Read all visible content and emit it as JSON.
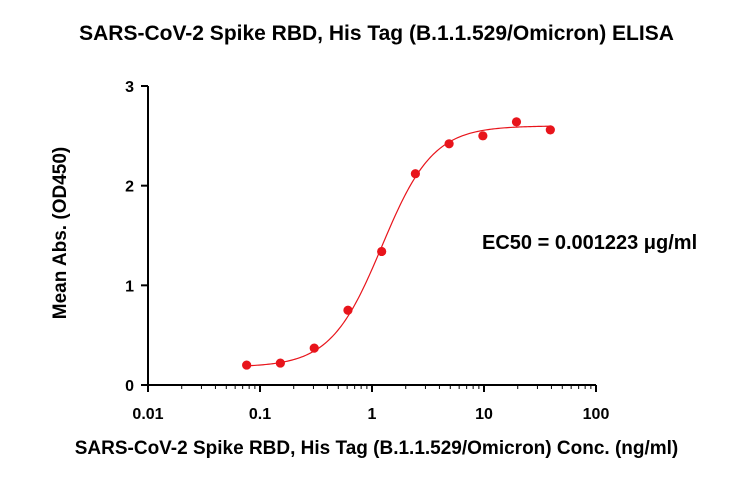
{
  "chart_data": {
    "type": "scatter",
    "title": "SARS-CoV-2 Spike RBD, His Tag (B.1.1.529/Omicron) ELISA",
    "xlabel": "SARS-CoV-2 Spike RBD, His Tag (B.1.1.529/Omicron) Conc. (ng/ml)",
    "ylabel": "Mean Abs. (OD450)",
    "x_scale": "log",
    "xlim": [
      0.01,
      100
    ],
    "ylim": [
      0,
      3
    ],
    "x_ticks": [
      "0.01",
      "0.1",
      "1",
      "10",
      "100"
    ],
    "y_ticks": [
      "0",
      "1",
      "2",
      "3"
    ],
    "grid": false,
    "annotation": "EC50 = 0.001223 μg/ml",
    "colors": {
      "series": "#e8141b",
      "axis": "#000000"
    },
    "series": [
      {
        "x": [
          0.076,
          0.152,
          0.305,
          0.61,
          1.22,
          2.44,
          4.88,
          9.77,
          19.5,
          39.1
        ],
        "y": [
          0.2,
          0.22,
          0.37,
          0.75,
          1.34,
          2.12,
          2.42,
          2.5,
          2.64,
          2.56
        ],
        "fit": {
          "model": "4PL",
          "bottom": 0.18,
          "top": 2.6,
          "ec50": 1.223,
          "hill": 1.9
        }
      }
    ]
  }
}
